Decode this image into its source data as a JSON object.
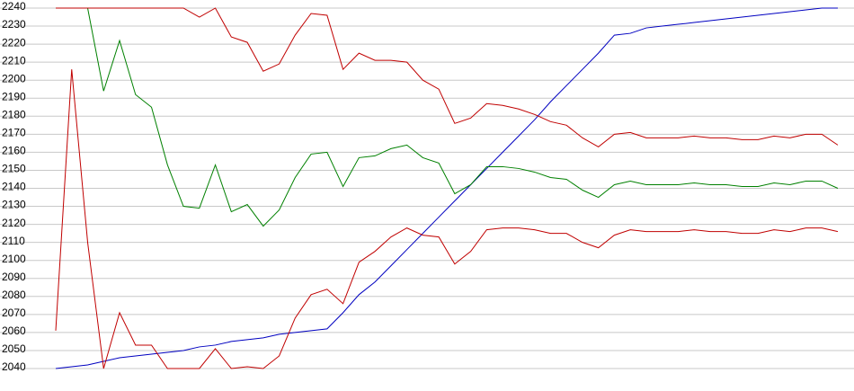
{
  "chart_data": {
    "type": "line",
    "categories": [
      null,
      null,
      null,
      null,
      null,
      null,
      null,
      null,
      null,
      null,
      null,
      null,
      null,
      null,
      null,
      null,
      null,
      null,
      null,
      null,
      null,
      null,
      null,
      null,
      null,
      null,
      null,
      null,
      null,
      null,
      null,
      null,
      null,
      null,
      null,
      null,
      null,
      null,
      null,
      null,
      null,
      null,
      null,
      null,
      null,
      null,
      null,
      null,
      null,
      null
    ],
    "series": [
      {
        "color": "#0000c0",
        "values": [
          2040,
          2041,
          2042,
          2044,
          2046,
          2047,
          2048,
          2049,
          2050,
          2052,
          2053,
          2055,
          2056,
          2057,
          2059,
          2060,
          2061,
          2062,
          2071,
          2081,
          2088,
          2097,
          2106,
          2115,
          2124,
          2133,
          2142,
          2151,
          2160,
          2169,
          2178,
          2188,
          2197,
          2206,
          2215,
          2225,
          2226,
          2229,
          2230,
          2231,
          2232,
          2233,
          2234,
          2235,
          2236,
          2237,
          2238,
          2239,
          2240,
          2240
        ]
      },
      {
        "color": "#008000",
        "values": [
          2240,
          2240,
          2240,
          2194,
          2222,
          2192,
          2185,
          2153,
          2130,
          2129,
          2153,
          2127,
          2131,
          2119,
          2128,
          2146,
          2159,
          2160,
          2141,
          2157,
          2158,
          2162,
          2164,
          2157,
          2154,
          2137,
          2142,
          2152,
          2152,
          2151,
          2149,
          2146,
          2145,
          2139,
          2135,
          2142,
          2144,
          2142,
          2142,
          2142,
          2143,
          2142,
          2142,
          2141,
          2141,
          2143,
          2142,
          2144,
          2144,
          2140
        ]
      },
      {
        "color": "#c00000",
        "values": [
          2240,
          2240,
          2240,
          2240,
          2240,
          2240,
          2240,
          2240,
          2240,
          2235,
          2240,
          2224,
          2221,
          2205,
          2209,
          2225,
          2237,
          2236,
          2206,
          2215,
          2211,
          2211,
          2210,
          2200,
          2195,
          2176,
          2179,
          2187,
          2186,
          2184,
          2181,
          2177,
          2175,
          2168,
          2163,
          2170,
          2171,
          2168,
          2168,
          2168,
          2169,
          2168,
          2168,
          2167,
          2167,
          2169,
          2168,
          2170,
          2170,
          2164
        ]
      },
      {
        "color": "#c00000",
        "values": [
          2061,
          2206,
          2110,
          2040,
          2071,
          2053,
          2053,
          2040,
          2040,
          2040,
          2051,
          2040,
          2041,
          2040,
          2047,
          2068,
          2081,
          2084,
          2076,
          2099,
          2105,
          2113,
          2118,
          2114,
          2113,
          2098,
          2105,
          2117,
          2118,
          2118,
          2117,
          2115,
          2115,
          2110,
          2107,
          2114,
          2117,
          2116,
          2116,
          2116,
          2117,
          2116,
          2116,
          2115,
          2115,
          2117,
          2116,
          2118,
          2118,
          2116
        ]
      }
    ],
    "ylim": [
      2040,
      2240
    ],
    "yticks": [
      2040,
      2050,
      2060,
      2070,
      2080,
      2090,
      2100,
      2110,
      2120,
      2130,
      2140,
      2150,
      2160,
      2170,
      2180,
      2190,
      2200,
      2210,
      2220,
      2230,
      2240
    ],
    "grid": true
  }
}
